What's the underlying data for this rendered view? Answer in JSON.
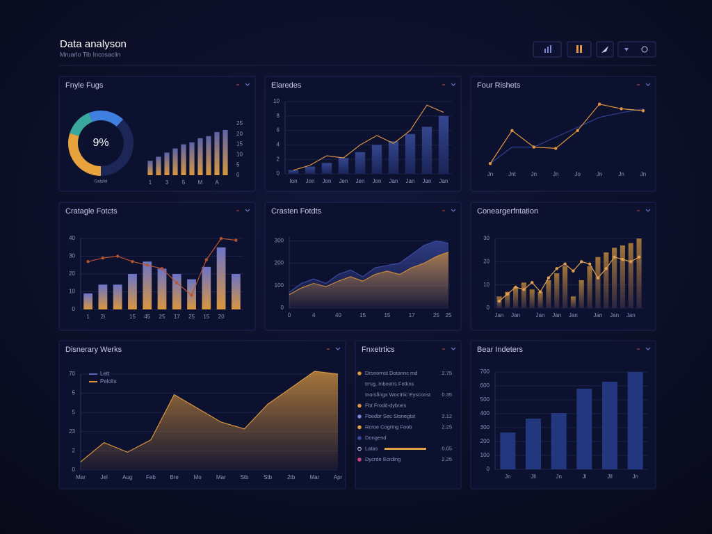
{
  "header": {
    "title": "Data analyson",
    "subtitle": "Mruarlo Tib Incosaclin"
  },
  "chart_data": [
    {
      "type": "pie",
      "title": "Fnyle Fugs",
      "center_label": "9%",
      "caption": "Gatsfel",
      "categories": [
        null,
        null,
        null,
        null
      ],
      "values": [
        18,
        38,
        30,
        14
      ],
      "colors": [
        "#3f7fe0",
        "#1c2758",
        "#e8a33c",
        "#3aa89c"
      ]
    },
    {
      "type": "combo",
      "ylim": [
        0,
        25
      ],
      "yticks": [
        0,
        5,
        10,
        15,
        20,
        25
      ],
      "grid": false,
      "y_axis_side": "right",
      "categories": [
        "1",
        null,
        "3",
        null,
        "5",
        null,
        "M",
        null,
        "A",
        null
      ],
      "series": [
        {
          "type": "bar",
          "color": "#d9963e",
          "gradient": [
            "#5b63a8",
            "#d9963e"
          ],
          "values": [
            7,
            9,
            11,
            13,
            15,
            16,
            18,
            19,
            21,
            22
          ]
        }
      ]
    },
    {
      "type": "combo",
      "title": "Elaredes",
      "ylim": [
        0,
        10
      ],
      "yticks": [
        0,
        2,
        4,
        6,
        8,
        10
      ],
      "grid": true,
      "categories": [
        "Ion",
        "Jon",
        "Jon",
        "Jen",
        "Jen",
        "Jon",
        "Jan",
        "Jan",
        "Jan",
        "Jan"
      ],
      "series": [
        {
          "type": "bar",
          "color": "#27367a",
          "gradient": [
            "#34468f",
            "#1a2457"
          ],
          "values": [
            0.5,
            1,
            1.5,
            2.2,
            3,
            4,
            4.5,
            5.5,
            6.5,
            8
          ]
        },
        {
          "type": "line",
          "color": "#d9934a",
          "values": [
            0.5,
            1.2,
            2.5,
            2.2,
            4,
            5.3,
            4.2,
            6,
            9.5,
            8.5
          ]
        }
      ]
    },
    {
      "type": "combo",
      "title": "Four Rishets",
      "ylim": [
        0,
        100
      ],
      "grid": false,
      "categories": [
        "Jn",
        "Jnt",
        "Jn",
        "Jn",
        "Jo",
        "Jn",
        "Jn",
        "Jn"
      ],
      "series": [
        {
          "type": "line",
          "color": "#2e3f8f",
          "values": [
            5,
            30,
            30,
            45,
            60,
            75,
            82,
            88
          ]
        },
        {
          "type": "line",
          "color": "#e0953e",
          "markers": true,
          "values": [
            5,
            55,
            30,
            28,
            55,
            95,
            88,
            85
          ]
        }
      ]
    },
    {
      "type": "combo",
      "title": "Cratagle Fotcts",
      "ylim": [
        0,
        40
      ],
      "yticks": [
        0,
        10,
        20,
        30,
        40
      ],
      "grid": true,
      "categories": [
        "1",
        "2i",
        null,
        "15",
        "45",
        "25",
        "17",
        "25",
        "15",
        "20",
        null
      ],
      "series": [
        {
          "type": "bar",
          "color": "#6b74c8",
          "gradient": [
            "#6b74c8",
            "#d9963e"
          ],
          "values": [
            9,
            14,
            14,
            20,
            27,
            23,
            20,
            17,
            24,
            35,
            20
          ]
        },
        {
          "type": "line",
          "color": "#b9532e",
          "markers": true,
          "values": [
            27,
            29,
            30,
            27,
            25,
            23,
            15,
            8,
            28,
            40,
            39
          ]
        }
      ]
    },
    {
      "type": "combo",
      "title": "Crasten Fotdts",
      "ylim": [
        0,
        320
      ],
      "yticks": [
        0,
        100,
        200,
        300
      ],
      "grid": true,
      "categories": [
        "0",
        null,
        "4",
        null,
        "40",
        null,
        "15",
        null,
        "15",
        null,
        "17",
        null,
        "25",
        "25"
      ],
      "series": [
        {
          "type": "area",
          "color": "#3a4aa0",
          "values": [
            70,
            110,
            130,
            110,
            150,
            170,
            140,
            180,
            190,
            200,
            240,
            280,
            300,
            290
          ]
        },
        {
          "type": "area",
          "color": "#c98a3c",
          "values": [
            60,
            90,
            110,
            95,
            120,
            140,
            120,
            150,
            165,
            150,
            180,
            200,
            230,
            250
          ]
        }
      ]
    },
    {
      "type": "combo",
      "title": "Coneargerfntation",
      "ylim": [
        0,
        30
      ],
      "yticks": [
        0,
        10,
        20,
        30
      ],
      "grid": true,
      "categories": [
        "Jan",
        null,
        "Jan",
        null,
        null,
        "Jan",
        null,
        "Jan",
        null,
        "Jan",
        null,
        null,
        "Jan",
        null,
        "Jan",
        null,
        "Jan",
        null
      ],
      "series": [
        {
          "type": "bar",
          "color": "#8a6638",
          "gradient": [
            "#a0743a",
            "#2a2440"
          ],
          "values": [
            5,
            7,
            9,
            11,
            8,
            7,
            12,
            15,
            18,
            5,
            12,
            18,
            22,
            24,
            26,
            27,
            28,
            30
          ]
        },
        {
          "type": "line",
          "color": "#e0a050",
          "markers": true,
          "values": [
            3,
            6,
            9,
            8,
            11,
            7,
            13,
            17,
            19,
            16,
            20,
            19,
            13,
            17,
            22,
            21,
            20,
            22
          ]
        }
      ]
    },
    {
      "type": "combo",
      "title": "Disnerary Werks",
      "ylim": [
        0,
        70
      ],
      "yticks": [
        0,
        {
          "value": 14,
          "label": "2"
        },
        {
          "value": 28,
          "label": "23"
        },
        {
          "value": 42,
          "label": "5"
        },
        {
          "value": 56,
          "label": "5"
        },
        70
      ],
      "grid": true,
      "categories": [
        "Mar",
        "Jel",
        "Aug",
        "Feb",
        "Bre",
        "Mo",
        "Mar",
        "Stb",
        "Stb",
        "2tb",
        "Mar",
        "Apr"
      ],
      "series": [
        {
          "type": "line",
          "name": "Lett",
          "color": "#5a66b8",
          "values": [
            null,
            null,
            null,
            null,
            null,
            null,
            null,
            null,
            null,
            null,
            null,
            null
          ]
        },
        {
          "type": "area",
          "name": "Pelolis",
          "color": "#d9963e",
          "values": [
            6,
            20,
            13,
            22,
            55,
            45,
            35,
            30,
            48,
            60,
            72,
            70
          ]
        }
      ]
    },
    {
      "type": "list",
      "title": "Fnxetrtics",
      "items": [
        {
          "label": "Dronornst Dotonnc md",
          "value": "2.75",
          "color": "#e0953e"
        },
        {
          "label": "trrsg, Inbxetrs Fotkns",
          "value": null,
          "color": null
        },
        {
          "label": "Inorsfingx Woctrtic Eysconst",
          "value": "0.35",
          "color": null
        },
        {
          "label": "Fbt Frodd-dybnes",
          "value": null,
          "color": "#e0953e"
        },
        {
          "label": "Fbedbr Sec Stsnegtst",
          "value": "2.12",
          "color": "#7a86d8"
        },
        {
          "label": "Rcroe Cogring Foob",
          "value": "2.25",
          "color": "#e0a040"
        },
        {
          "label": "Dongend",
          "value": null,
          "color": "#3a4aa0"
        },
        {
          "label": "Latas",
          "value": "0.05",
          "color": "#d8d8e8"
        },
        {
          "label": "Dycrde Ecrding",
          "value": "2.25",
          "color": "#d0407a"
        }
      ]
    },
    {
      "type": "combo",
      "title": "Bear Indeters",
      "ylim": [
        0,
        700
      ],
      "yticks": [
        0,
        100,
        200,
        300,
        400,
        500,
        600,
        700
      ],
      "grid": true,
      "categories": [
        "Jn",
        "Jll",
        "Jn",
        "Jl",
        "Jll",
        "Jn"
      ],
      "series": [
        {
          "type": "bar",
          "color": "#23377e",
          "values": [
            265,
            365,
            405,
            580,
            630,
            700
          ]
        }
      ]
    }
  ]
}
